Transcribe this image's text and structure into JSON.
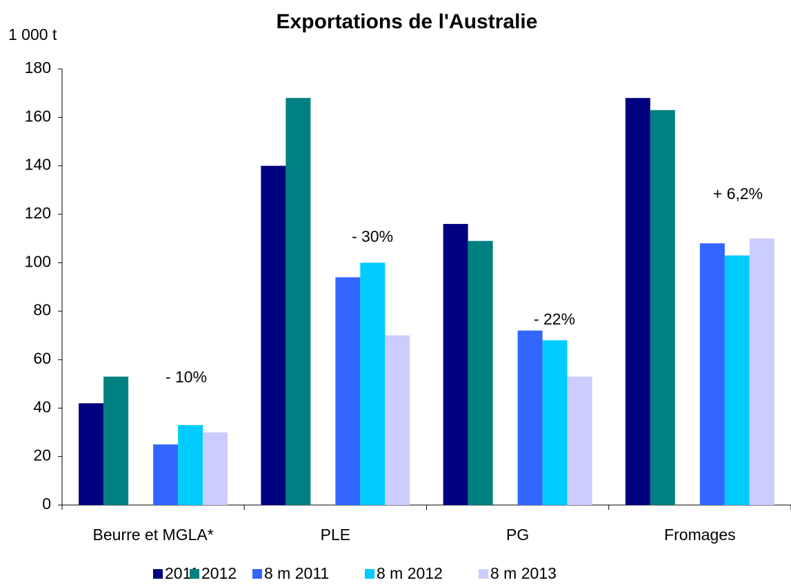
{
  "chart_data": {
    "type": "bar",
    "title": "Exportations de l'Australie",
    "y_label": "1 000 t",
    "categories": [
      "Beurre et MGLA*",
      "PLE",
      "PG",
      "Fromages"
    ],
    "series": [
      {
        "name": "2011",
        "color": "#000080",
        "values": [
          42,
          140,
          116,
          168
        ]
      },
      {
        "name": "2012",
        "color": "#008080",
        "values": [
          53,
          168,
          109,
          163
        ]
      },
      {
        "name": "8 m 2011",
        "color": "#3366ff",
        "values": [
          25,
          94,
          72,
          108
        ]
      },
      {
        "name": "8 m 2012",
        "color": "#00ccff",
        "values": [
          33,
          100,
          68,
          103
        ]
      },
      {
        "name": "8 m 2013",
        "color": "#ccccff",
        "values": [
          30,
          70,
          53,
          110
        ]
      }
    ],
    "annotations": [
      "- 10%",
      "- 30%",
      "- 22%",
      "+ 6,2%"
    ],
    "ylim": [
      0,
      180
    ],
    "yticks": [
      0,
      20,
      40,
      60,
      80,
      100,
      120,
      140,
      160,
      180
    ],
    "legend": "bottom"
  }
}
